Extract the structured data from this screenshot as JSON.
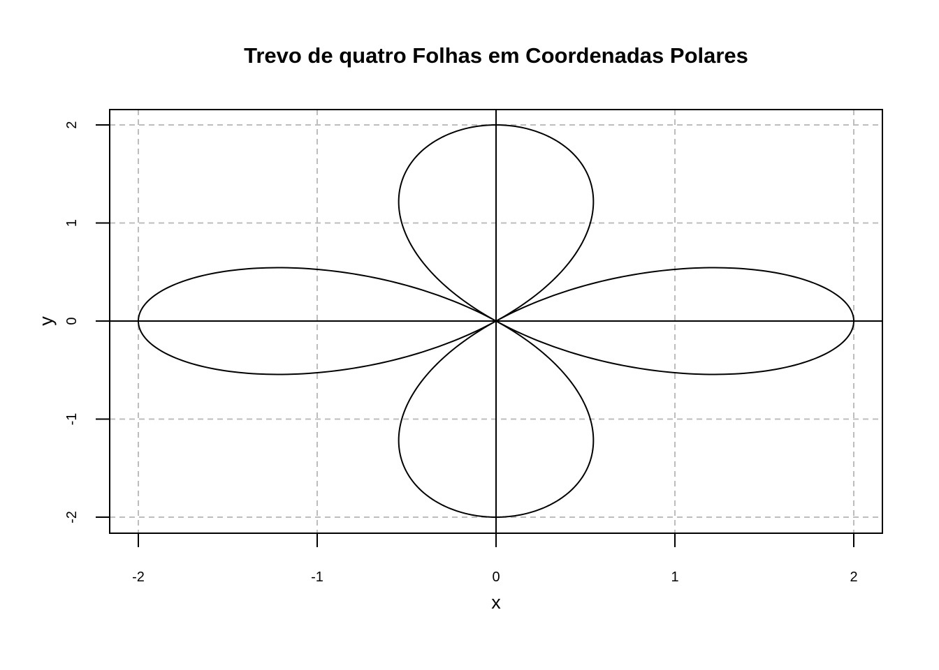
{
  "chart_data": {
    "type": "line",
    "title": "Trevo de quatro Folhas em Coordenadas Polares",
    "xlabel": "x",
    "ylabel": "y",
    "xlim": [
      -2.16,
      2.16
    ],
    "ylim": [
      -2.16,
      2.16
    ],
    "x_ticks": [
      -2,
      -1,
      0,
      1,
      2
    ],
    "y_ticks": [
      -2,
      -1,
      0,
      1,
      2
    ],
    "x_tick_labels": [
      "-2",
      "-1",
      "0",
      "1",
      "2"
    ],
    "y_tick_labels": [
      "-2",
      "-1",
      "0",
      "1",
      "2"
    ],
    "grid": true,
    "reference_lines": {
      "x": 0,
      "y": 0
    },
    "series": [
      {
        "equation": "r = 2 cos(2θ)",
        "theta_range": [
          0,
          6.2832
        ],
        "points": 400
      }
    ],
    "colors": {
      "curve": "#000000",
      "grid": "#bdbdbd",
      "frame": "#000000"
    }
  }
}
